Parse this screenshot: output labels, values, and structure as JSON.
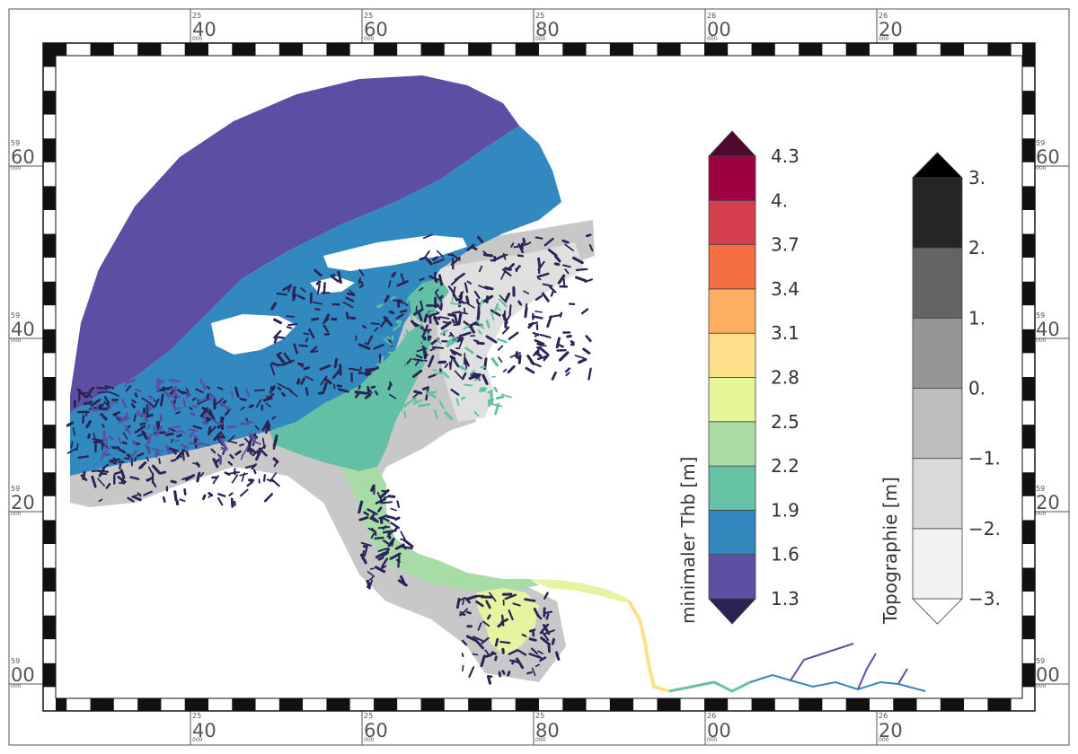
{
  "map": {
    "x_ticks": [
      {
        "top": "25",
        "big": "40",
        "small": "000"
      },
      {
        "top": "25",
        "big": "60",
        "small": "000"
      },
      {
        "top": "25",
        "big": "80",
        "small": "000"
      },
      {
        "top": "26",
        "big": "00",
        "small": "000"
      },
      {
        "top": "26",
        "big": "20",
        "small": "000"
      }
    ],
    "y_ticks": [
      {
        "top": "59",
        "big": "60",
        "small": "000"
      },
      {
        "top": "59",
        "big": "40",
        "small": "000"
      },
      {
        "top": "59",
        "big": "20",
        "small": "000"
      },
      {
        "top": "59",
        "big": "00",
        "small": "000"
      }
    ],
    "colors": {
      "sea_purple": "#5c4fa3",
      "sea_blue": "#3289bf",
      "teal": "#63c0a5",
      "light_green": "#a8dca6",
      "yellow_green": "#e7f3a1",
      "light_yellow": "#fee08b",
      "dark_navy": "#2a2356"
    }
  },
  "legend_thb": {
    "title": "minimaler Thb [m]",
    "labels": [
      "4.3",
      "4.",
      "3.7",
      "3.4",
      "3.1",
      "2.8",
      "2.5",
      "2.2",
      "1.9",
      "1.6",
      "1.3"
    ],
    "colors": [
      "#5e4fa2",
      "#3288bd",
      "#66c2a5",
      "#abdda4",
      "#e6f598",
      "#fee08b",
      "#fdae61",
      "#f46d43",
      "#d53e4f",
      "#9e0142"
    ],
    "over_color": "#4d0a2e",
    "under_color": "#2b2354"
  },
  "legend_topo": {
    "title": "Topographie [m]",
    "labels": [
      "3.",
      "2.",
      "1.",
      "0.",
      "−1.",
      "−2.",
      "−3."
    ],
    "colors": [
      "#f2f2f2",
      "#d9d9d9",
      "#bdbdbd",
      "#969696",
      "#646464",
      "#252525"
    ],
    "over_color": "#000000",
    "under_color": "#ffffff"
  }
}
